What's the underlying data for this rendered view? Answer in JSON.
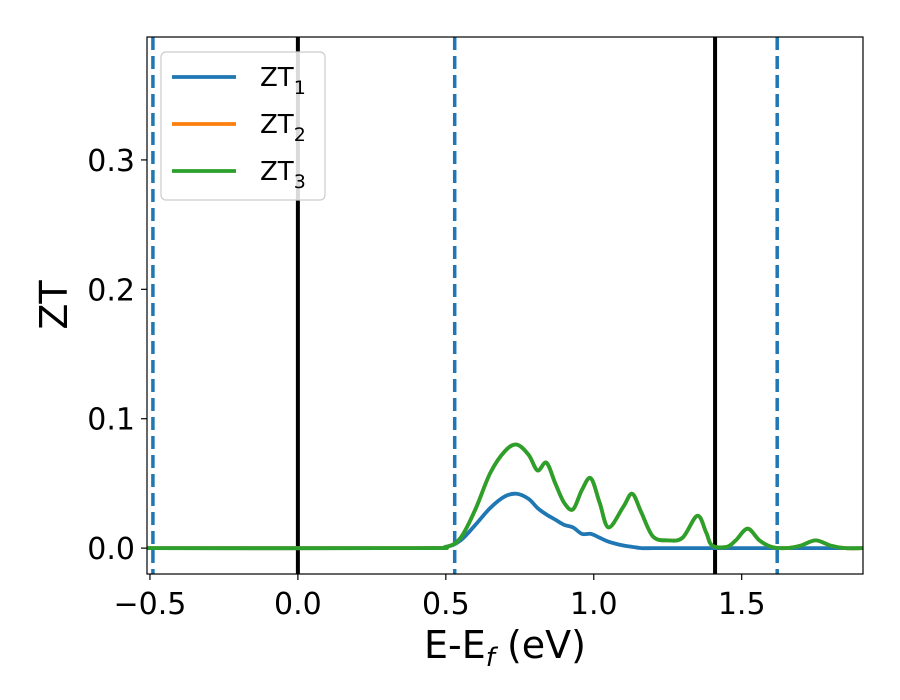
{
  "chart_data": {
    "type": "line",
    "xlabel": {
      "main": "E-E",
      "sub": "f",
      "unit": " (eV)"
    },
    "ylabel": "ZT",
    "xlim": [
      -0.51,
      1.91
    ],
    "ylim": [
      -0.02,
      0.395
    ],
    "xticks": [
      -0.5,
      0.0,
      0.5,
      1.0,
      1.5
    ],
    "xtick_labels": [
      "−0.5",
      "0.0",
      "0.5",
      "1.0",
      "1.5"
    ],
    "yticks": [
      0.0,
      0.1,
      0.2,
      0.3
    ],
    "ytick_labels": [
      "0.0",
      "0.1",
      "0.2",
      "0.3"
    ],
    "grid": false,
    "legend_position": "top-left",
    "vertical_lines": [
      {
        "x": -0.49,
        "style": "dashed",
        "color": "#1f77b4"
      },
      {
        "x": 0.0,
        "style": "solid",
        "color": "#000000"
      },
      {
        "x": 0.53,
        "style": "dashed",
        "color": "#1f77b4"
      },
      {
        "x": 1.41,
        "style": "solid",
        "color": "#000000"
      },
      {
        "x": 1.62,
        "style": "dashed",
        "color": "#1f77b4"
      }
    ],
    "x": [
      -0.51,
      0.4,
      0.5,
      0.55,
      0.6,
      0.65,
      0.7,
      0.74,
      0.78,
      0.81,
      0.84,
      0.87,
      0.9,
      0.93,
      0.96,
      0.99,
      1.02,
      1.05,
      1.1,
      1.13,
      1.16,
      1.2,
      1.25,
      1.3,
      1.35,
      1.38,
      1.4,
      1.45,
      1.48,
      1.52,
      1.56,
      1.6,
      1.65,
      1.7,
      1.75,
      1.8,
      1.85,
      1.91
    ],
    "series": [
      {
        "name": "ZT",
        "name_sub": "1",
        "color": "#1f77b4",
        "values": [
          0.0,
          0.0,
          0.001,
          0.006,
          0.018,
          0.031,
          0.04,
          0.042,
          0.038,
          0.031,
          0.026,
          0.022,
          0.018,
          0.016,
          0.011,
          0.011,
          0.008,
          0.005,
          0.002,
          0.001,
          0.0,
          0.0,
          0.0,
          0.0,
          0.0,
          0.0,
          0.0,
          0.0,
          0.0,
          0.0,
          0.0,
          0.0,
          0.0,
          0.0,
          0.0,
          0.0,
          0.0,
          0.0
        ]
      },
      {
        "name": "ZT",
        "name_sub": "2",
        "color": "#ff7f0e",
        "values": [
          0.0,
          0.0,
          0.001,
          0.008,
          0.03,
          0.058,
          0.075,
          0.08,
          0.072,
          0.06,
          0.066,
          0.05,
          0.035,
          0.03,
          0.045,
          0.054,
          0.035,
          0.016,
          0.032,
          0.042,
          0.028,
          0.009,
          0.006,
          0.008,
          0.025,
          0.012,
          0.002,
          0.001,
          0.006,
          0.015,
          0.006,
          0.001,
          0.0,
          0.002,
          0.006,
          0.002,
          0.0,
          0.0
        ]
      },
      {
        "name": "ZT",
        "name_sub": "3",
        "color": "#2ca02c",
        "values": [
          0.0,
          0.0,
          0.001,
          0.008,
          0.03,
          0.058,
          0.075,
          0.08,
          0.072,
          0.06,
          0.066,
          0.05,
          0.035,
          0.03,
          0.045,
          0.054,
          0.035,
          0.016,
          0.032,
          0.042,
          0.028,
          0.009,
          0.006,
          0.008,
          0.025,
          0.012,
          0.002,
          0.001,
          0.006,
          0.015,
          0.006,
          0.001,
          0.0,
          0.002,
          0.006,
          0.002,
          0.0,
          0.0
        ]
      }
    ]
  }
}
